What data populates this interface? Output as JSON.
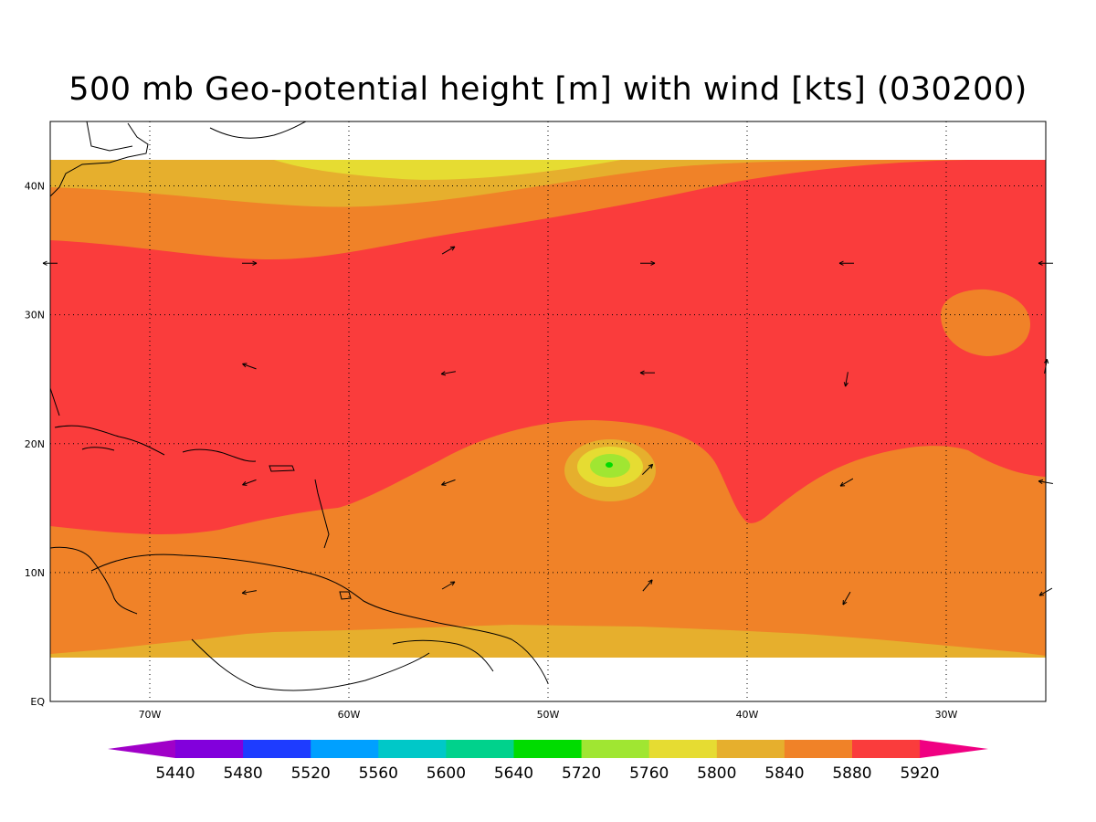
{
  "title": "500 mb Geo-potential height [m] with wind [kts] (030200)",
  "map": {
    "lon_range": [
      -75,
      -25
    ],
    "lat_range": [
      0,
      45
    ],
    "data_lat_range": [
      4,
      42
    ],
    "lat_ticks": [
      {
        "value": 0,
        "label": "EQ"
      },
      {
        "value": 10,
        "label": "10N"
      },
      {
        "value": 20,
        "label": "20N"
      },
      {
        "value": 30,
        "label": "30N"
      },
      {
        "value": 40,
        "label": "40N"
      }
    ],
    "lon_ticks": [
      {
        "value": -70,
        "label": "70W"
      },
      {
        "value": -60,
        "label": "60W"
      },
      {
        "value": -50,
        "label": "50W"
      },
      {
        "value": -40,
        "label": "40W"
      },
      {
        "value": -30,
        "label": "30W"
      }
    ],
    "grid": "dotted"
  },
  "colorbar": {
    "levels": [
      "5440",
      "5480",
      "5520",
      "5560",
      "5600",
      "5640",
      "5720",
      "5760",
      "5800",
      "5840",
      "5880",
      "5920"
    ],
    "colors": [
      "#a000c8",
      "#8200dc",
      "#1e3cff",
      "#00a0ff",
      "#00c8c8",
      "#00d28c",
      "#00dc00",
      "#a0e632",
      "#e6dc32",
      "#e6af2d",
      "#f08228",
      "#fa3c3c",
      "#f00082"
    ]
  },
  "contour_colors": {
    "c5800": "#e6dc32",
    "c5840": "#e6af2d",
    "c5880": "#f08228",
    "c5920": "#fa3c3c",
    "c5760": "#a0e632",
    "c5720": "#00dc00"
  },
  "wind_vectors": [
    {
      "lon": -75,
      "lat": 34,
      "dir_deg": 180
    },
    {
      "lon": -65,
      "lat": 34,
      "dir_deg": 0
    },
    {
      "lon": -55,
      "lat": 35,
      "dir_deg": 30
    },
    {
      "lon": -45,
      "lat": 34,
      "dir_deg": 0
    },
    {
      "lon": -35,
      "lat": 34,
      "dir_deg": 180
    },
    {
      "lon": -25,
      "lat": 34,
      "dir_deg": 180
    },
    {
      "lon": -65,
      "lat": 26,
      "dir_deg": 160
    },
    {
      "lon": -55,
      "lat": 25.5,
      "dir_deg": 190
    },
    {
      "lon": -45,
      "lat": 25.5,
      "dir_deg": 180
    },
    {
      "lon": -35,
      "lat": 25,
      "dir_deg": 260
    },
    {
      "lon": -25,
      "lat": 26,
      "dir_deg": 80
    },
    {
      "lon": -65,
      "lat": 17,
      "dir_deg": 200
    },
    {
      "lon": -55,
      "lat": 17,
      "dir_deg": 200
    },
    {
      "lon": -45,
      "lat": 18,
      "dir_deg": 45
    },
    {
      "lon": -35,
      "lat": 17,
      "dir_deg": 210
    },
    {
      "lon": -25,
      "lat": 17,
      "dir_deg": 170
    },
    {
      "lon": -65,
      "lat": 8.5,
      "dir_deg": 190
    },
    {
      "lon": -55,
      "lat": 9,
      "dir_deg": 30
    },
    {
      "lon": -45,
      "lat": 9,
      "dir_deg": 50
    },
    {
      "lon": -35,
      "lat": 8,
      "dir_deg": 240
    },
    {
      "lon": -25,
      "lat": 8.5,
      "dir_deg": 210
    }
  ]
}
